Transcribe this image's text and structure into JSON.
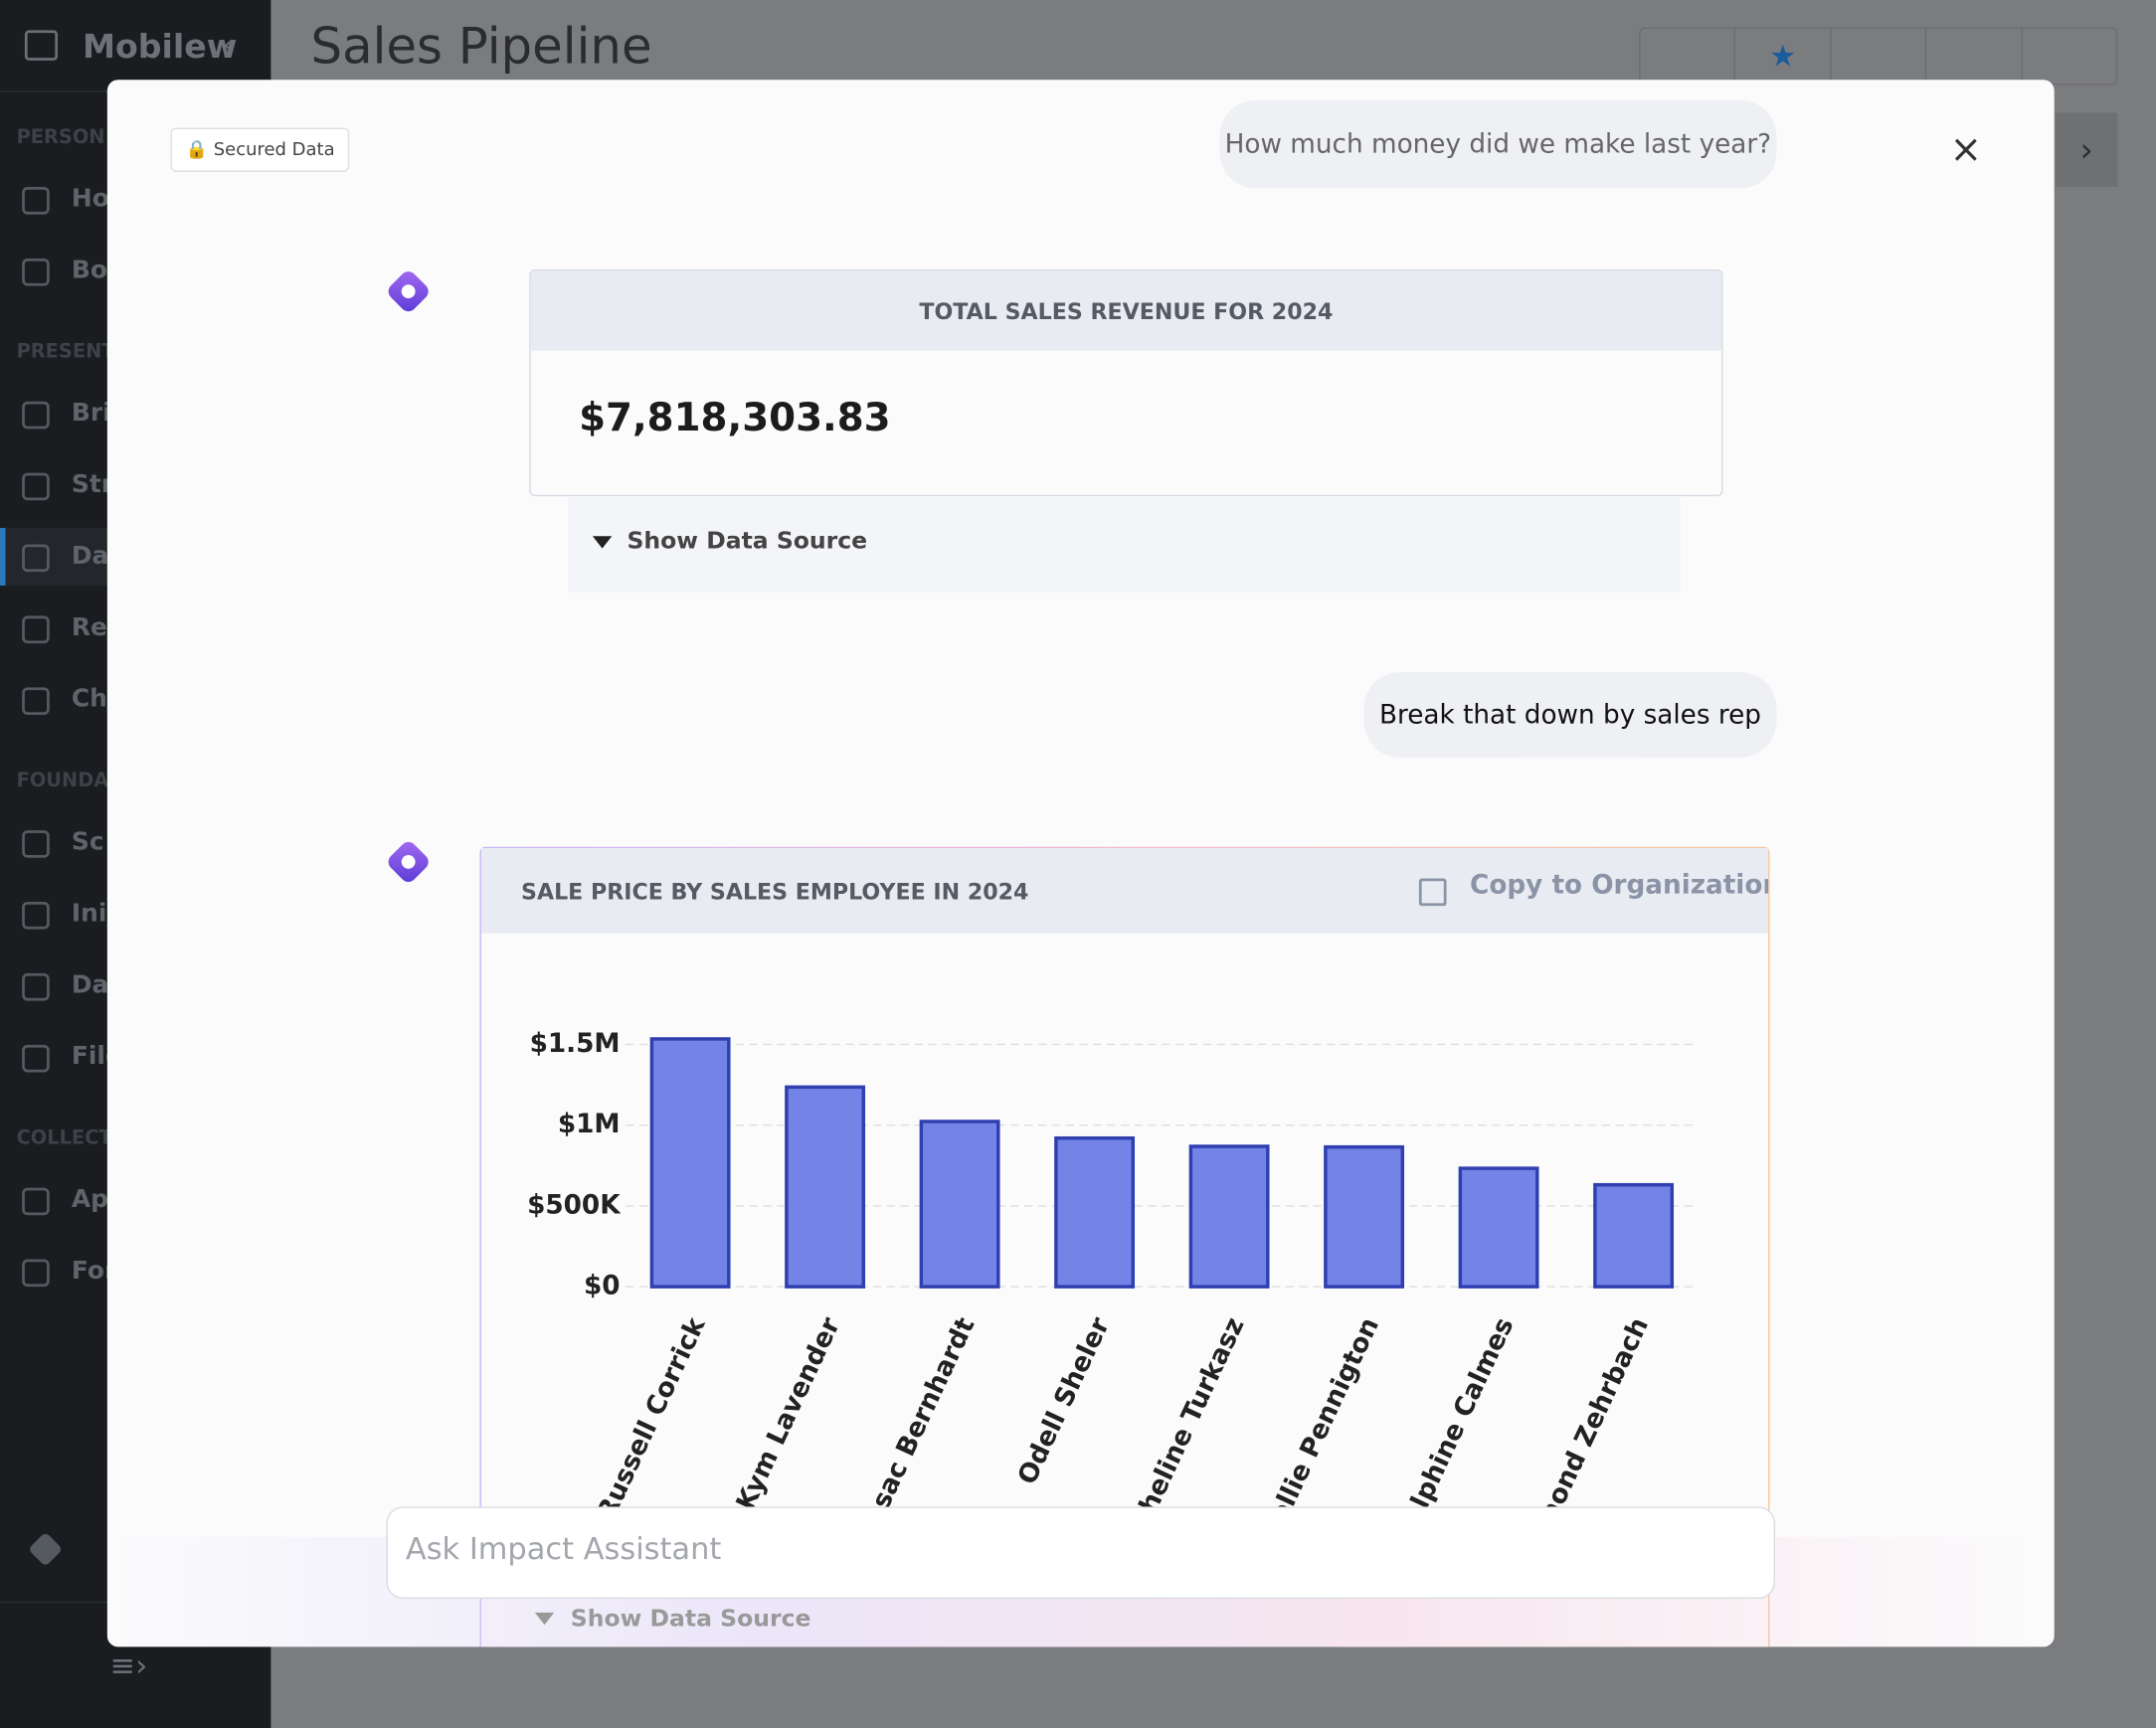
{
  "sidebar": {
    "app_name": "Mobilew",
    "sections": [
      {
        "label": "PERSON",
        "items": [
          "Ho",
          "Bo"
        ]
      },
      {
        "label": "PRESENT",
        "items": [
          "Bri",
          "Str",
          "Da",
          "Rep",
          "Ch"
        ]
      },
      {
        "label": "FOUNDA",
        "items": [
          "Sc",
          "Ini",
          "Da",
          "File"
        ]
      },
      {
        "label": "COLLECT",
        "items": [
          "Ap",
          "For"
        ]
      }
    ]
  },
  "header": {
    "title": "Sales Pipeline"
  },
  "assistant": {
    "badge": "Secured Data",
    "question_1": "How much money did we make last year?",
    "kpi": {
      "title": "TOTAL SALES REVENUE FOR 2024",
      "value": "$7,818,303.83",
      "source_toggle": "Show Data Source"
    },
    "question_2": "Break that down by sales rep",
    "chart_card": {
      "title": "SALE PRICE BY SALES EMPLOYEE IN 2024",
      "action": "Copy to Organization",
      "source_toggle": "Show Data Source"
    },
    "input_placeholder": "Ask Impact Assistant"
  },
  "chart_data": {
    "type": "bar",
    "categories": [
      "Russell Corrick",
      "Kym Lavender",
      "Issac Bernhardt",
      "Odell Sheler",
      "Micheline Turkasz",
      "Hollie Pennigton",
      "Delphine Calmes",
      "Edmond Zehrbach"
    ],
    "values": [
      1534000,
      1236000,
      1023000,
      920000,
      869000,
      865000,
      733000,
      631000
    ],
    "color": "#7384e6",
    "edge_color": "#2f3fb0",
    "ylim": [
      0,
      1600000
    ],
    "yticks": [
      {
        "value": 0,
        "label": "$0"
      },
      {
        "value": 500000,
        "label": "$500K"
      },
      {
        "value": 1000000,
        "label": "$1M"
      },
      {
        "value": 1500000,
        "label": "$1.5M"
      }
    ],
    "grid": true
  }
}
